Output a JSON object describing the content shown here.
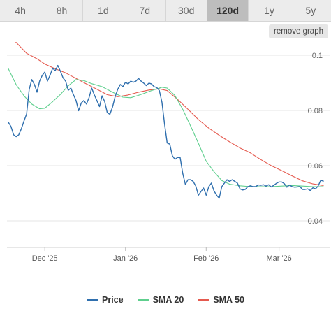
{
  "tabs": [
    {
      "label": "4h",
      "active": false
    },
    {
      "label": "8h",
      "active": false
    },
    {
      "label": "1d",
      "active": false
    },
    {
      "label": "7d",
      "active": false
    },
    {
      "label": "30d",
      "active": false
    },
    {
      "label": "120d",
      "active": true
    },
    {
      "label": "1y",
      "active": false
    },
    {
      "label": "5y",
      "active": false
    }
  ],
  "remove_graph_label": "remove graph",
  "legend": [
    {
      "label": "Price",
      "color": "#2f6fae"
    },
    {
      "label": "SMA 20",
      "color": "#5fcf8e"
    },
    {
      "label": "SMA 50",
      "color": "#e55a4f"
    }
  ],
  "chart_data": {
    "type": "line",
    "y_axis_position": "right",
    "ylim": [
      0.04,
      0.11
    ],
    "y_ticks": [
      {
        "value": 0.1,
        "label": "0.1"
      },
      {
        "value": 0.08,
        "label": "0.08"
      },
      {
        "value": 0.06,
        "label": "0.06"
      },
      {
        "value": 0.04,
        "label": "0.04"
      }
    ],
    "x_ticks": [
      {
        "date": "2025-12-01",
        "label": "Dec '25"
      },
      {
        "date": "2026-01-01",
        "label": "Jan '26"
      },
      {
        "date": "2026-02-01",
        "label": "Feb '26"
      },
      {
        "date": "2026-03-01",
        "label": "Mar '26"
      }
    ],
    "x_range": [
      "2025-11-17",
      "2026-03-18"
    ],
    "grid": "horizontal",
    "legend_position": "bottom",
    "series": [
      {
        "name": "Price",
        "color": "#2f6fae",
        "points": [
          [
            "2025-11-17",
            0.0757
          ],
          [
            "2025-11-18",
            0.0742
          ],
          [
            "2025-11-19",
            0.0712
          ],
          [
            "2025-11-20",
            0.0705
          ],
          [
            "2025-11-21",
            0.0712
          ],
          [
            "2025-11-22",
            0.0734
          ],
          [
            "2025-11-23",
            0.0762
          ],
          [
            "2025-11-24",
            0.0787
          ],
          [
            "2025-11-25",
            0.0876
          ],
          [
            "2025-11-26",
            0.0912
          ],
          [
            "2025-11-27",
            0.0894
          ],
          [
            "2025-11-28",
            0.0866
          ],
          [
            "2025-11-29",
            0.0906
          ],
          [
            "2025-11-30",
            0.0927
          ],
          [
            "2025-12-01",
            0.0939
          ],
          [
            "2025-12-02",
            0.0906
          ],
          [
            "2025-12-03",
            0.0927
          ],
          [
            "2025-12-04",
            0.0953
          ],
          [
            "2025-12-05",
            0.0944
          ],
          [
            "2025-12-06",
            0.0963
          ],
          [
            "2025-12-07",
            0.0942
          ],
          [
            "2025-12-08",
            0.0918
          ],
          [
            "2025-12-09",
            0.0906
          ],
          [
            "2025-12-10",
            0.0873
          ],
          [
            "2025-12-11",
            0.0881
          ],
          [
            "2025-12-12",
            0.0857
          ],
          [
            "2025-12-13",
            0.0836
          ],
          [
            "2025-12-14",
            0.0799
          ],
          [
            "2025-12-15",
            0.0827
          ],
          [
            "2025-12-16",
            0.0836
          ],
          [
            "2025-12-17",
            0.0823
          ],
          [
            "2025-12-18",
            0.0846
          ],
          [
            "2025-12-19",
            0.0881
          ],
          [
            "2025-12-20",
            0.0857
          ],
          [
            "2025-12-21",
            0.0836
          ],
          [
            "2025-12-22",
            0.0814
          ],
          [
            "2025-12-23",
            0.0853
          ],
          [
            "2025-12-24",
            0.0832
          ],
          [
            "2025-12-25",
            0.0792
          ],
          [
            "2025-12-26",
            0.0786
          ],
          [
            "2025-12-27",
            0.0812
          ],
          [
            "2025-12-28",
            0.0849
          ],
          [
            "2025-12-29",
            0.0876
          ],
          [
            "2025-12-30",
            0.0894
          ],
          [
            "2025-12-31",
            0.0886
          ],
          [
            "2026-01-01",
            0.0902
          ],
          [
            "2026-01-02",
            0.0896
          ],
          [
            "2026-01-03",
            0.0906
          ],
          [
            "2026-01-04",
            0.0902
          ],
          [
            "2026-01-05",
            0.0906
          ],
          [
            "2026-01-06",
            0.0916
          ],
          [
            "2026-01-07",
            0.0906
          ],
          [
            "2026-01-08",
            0.0899
          ],
          [
            "2026-01-09",
            0.089
          ],
          [
            "2026-01-10",
            0.0899
          ],
          [
            "2026-01-11",
            0.0896
          ],
          [
            "2026-01-12",
            0.0886
          ],
          [
            "2026-01-13",
            0.0883
          ],
          [
            "2026-01-14",
            0.0872
          ],
          [
            "2026-01-15",
            0.083
          ],
          [
            "2026-01-16",
            0.0752
          ],
          [
            "2026-01-17",
            0.0682
          ],
          [
            "2026-01-18",
            0.0678
          ],
          [
            "2026-01-19",
            0.0636
          ],
          [
            "2026-01-20",
            0.0623
          ],
          [
            "2026-01-21",
            0.063
          ],
          [
            "2026-01-22",
            0.0629
          ],
          [
            "2026-01-23",
            0.0572
          ],
          [
            "2026-01-24",
            0.0532
          ],
          [
            "2026-01-25",
            0.0549
          ],
          [
            "2026-01-26",
            0.0549
          ],
          [
            "2026-01-27",
            0.0543
          ],
          [
            "2026-01-28",
            0.0526
          ],
          [
            "2026-01-29",
            0.0493
          ],
          [
            "2026-01-30",
            0.0506
          ],
          [
            "2026-01-31",
            0.0519
          ],
          [
            "2026-02-01",
            0.0493
          ],
          [
            "2026-02-02",
            0.0524
          ],
          [
            "2026-02-03",
            0.0537
          ],
          [
            "2026-02-04",
            0.0508
          ],
          [
            "2026-02-05",
            0.0493
          ],
          [
            "2026-02-06",
            0.0482
          ],
          [
            "2026-02-07",
            0.0524
          ],
          [
            "2026-02-08",
            0.0537
          ],
          [
            "2026-02-09",
            0.0549
          ],
          [
            "2026-02-10",
            0.0543
          ],
          [
            "2026-02-11",
            0.0549
          ],
          [
            "2026-02-12",
            0.0543
          ],
          [
            "2026-02-13",
            0.0537
          ],
          [
            "2026-02-14",
            0.0516
          ],
          [
            "2026-02-15",
            0.0512
          ],
          [
            "2026-02-16",
            0.0514
          ],
          [
            "2026-02-17",
            0.0524
          ],
          [
            "2026-02-18",
            0.0527
          ],
          [
            "2026-02-19",
            0.0524
          ],
          [
            "2026-02-20",
            0.0524
          ],
          [
            "2026-02-21",
            0.053
          ],
          [
            "2026-02-22",
            0.0529
          ],
          [
            "2026-02-23",
            0.0531
          ],
          [
            "2026-02-24",
            0.0526
          ],
          [
            "2026-02-25",
            0.0531
          ],
          [
            "2026-02-26",
            0.0523
          ],
          [
            "2026-02-27",
            0.0529
          ],
          [
            "2026-02-28",
            0.0536
          ],
          [
            "2026-03-01",
            0.0541
          ],
          [
            "2026-03-02",
            0.0541
          ],
          [
            "2026-03-03",
            0.0535
          ],
          [
            "2026-03-04",
            0.0522
          ],
          [
            "2026-03-05",
            0.053
          ],
          [
            "2026-03-06",
            0.0524
          ],
          [
            "2026-03-07",
            0.0522
          ],
          [
            "2026-03-08",
            0.0523
          ],
          [
            "2026-03-09",
            0.0524
          ],
          [
            "2026-03-10",
            0.0514
          ],
          [
            "2026-03-11",
            0.0514
          ],
          [
            "2026-03-12",
            0.0516
          ],
          [
            "2026-03-13",
            0.051
          ],
          [
            "2026-03-14",
            0.052
          ],
          [
            "2026-03-15",
            0.0516
          ],
          [
            "2026-03-16",
            0.0526
          ],
          [
            "2026-03-17",
            0.0547
          ],
          [
            "2026-03-18",
            0.0544
          ]
        ]
      },
      {
        "name": "SMA 20",
        "color": "#5fcf8e",
        "points": [
          [
            "2025-11-17",
            0.0951
          ],
          [
            "2025-11-20",
            0.0893
          ],
          [
            "2025-11-23",
            0.0853
          ],
          [
            "2025-11-26",
            0.0823
          ],
          [
            "2025-11-29",
            0.0806
          ],
          [
            "2025-12-01",
            0.0808
          ],
          [
            "2025-12-04",
            0.0832
          ],
          [
            "2025-12-07",
            0.0858
          ],
          [
            "2025-12-10",
            0.0889
          ],
          [
            "2025-12-13",
            0.0912
          ],
          [
            "2025-12-16",
            0.0908
          ],
          [
            "2025-12-19",
            0.0897
          ],
          [
            "2025-12-23",
            0.0886
          ],
          [
            "2025-12-27",
            0.0866
          ],
          [
            "2025-12-31",
            0.0848
          ],
          [
            "2026-01-03",
            0.0846
          ],
          [
            "2026-01-07",
            0.0858
          ],
          [
            "2026-01-11",
            0.0872
          ],
          [
            "2026-01-15",
            0.0884
          ],
          [
            "2026-01-17",
            0.0881
          ],
          [
            "2026-01-20",
            0.0854
          ],
          [
            "2026-01-23",
            0.0804
          ],
          [
            "2026-01-26",
            0.0744
          ],
          [
            "2026-01-29",
            0.0681
          ],
          [
            "2026-02-01",
            0.0616
          ],
          [
            "2026-02-04",
            0.0578
          ],
          [
            "2026-02-07",
            0.0546
          ],
          [
            "2026-02-10",
            0.0533
          ],
          [
            "2026-02-14",
            0.0527
          ],
          [
            "2026-02-18",
            0.0524
          ],
          [
            "2026-02-22",
            0.0524
          ],
          [
            "2026-02-26",
            0.0524
          ],
          [
            "2026-03-02",
            0.0526
          ],
          [
            "2026-03-06",
            0.0528
          ],
          [
            "2026-03-10",
            0.0526
          ],
          [
            "2026-03-14",
            0.0524
          ],
          [
            "2026-03-18",
            0.0524
          ]
        ]
      },
      {
        "name": "SMA 50",
        "color": "#e55a4f",
        "points": [
          [
            "2025-11-17",
            0.1086
          ],
          [
            "2025-11-20",
            0.1046
          ],
          [
            "2025-11-24",
            0.1007
          ],
          [
            "2025-11-28",
            0.0987
          ],
          [
            "2025-12-01",
            0.0968
          ],
          [
            "2025-12-05",
            0.0951
          ],
          [
            "2025-12-09",
            0.0936
          ],
          [
            "2025-12-13",
            0.0916
          ],
          [
            "2025-12-17",
            0.0896
          ],
          [
            "2025-12-21",
            0.0877
          ],
          [
            "2025-12-25",
            0.0857
          ],
          [
            "2025-12-29",
            0.085
          ],
          [
            "2026-01-02",
            0.0856
          ],
          [
            "2026-01-06",
            0.0866
          ],
          [
            "2026-01-10",
            0.0874
          ],
          [
            "2026-01-14",
            0.0878
          ],
          [
            "2026-01-17",
            0.0872
          ],
          [
            "2026-01-21",
            0.084
          ],
          [
            "2026-01-25",
            0.0804
          ],
          [
            "2026-01-29",
            0.0767
          ],
          [
            "2026-02-02",
            0.0736
          ],
          [
            "2026-02-06",
            0.071
          ],
          [
            "2026-02-10",
            0.0686
          ],
          [
            "2026-02-14",
            0.0664
          ],
          [
            "2026-02-18",
            0.0646
          ],
          [
            "2026-02-22",
            0.0622
          ],
          [
            "2026-02-26",
            0.06
          ],
          [
            "2026-03-02",
            0.0582
          ],
          [
            "2026-03-06",
            0.0563
          ],
          [
            "2026-03-10",
            0.0545
          ],
          [
            "2026-03-14",
            0.0534
          ],
          [
            "2026-03-18",
            0.0528
          ]
        ]
      }
    ]
  }
}
